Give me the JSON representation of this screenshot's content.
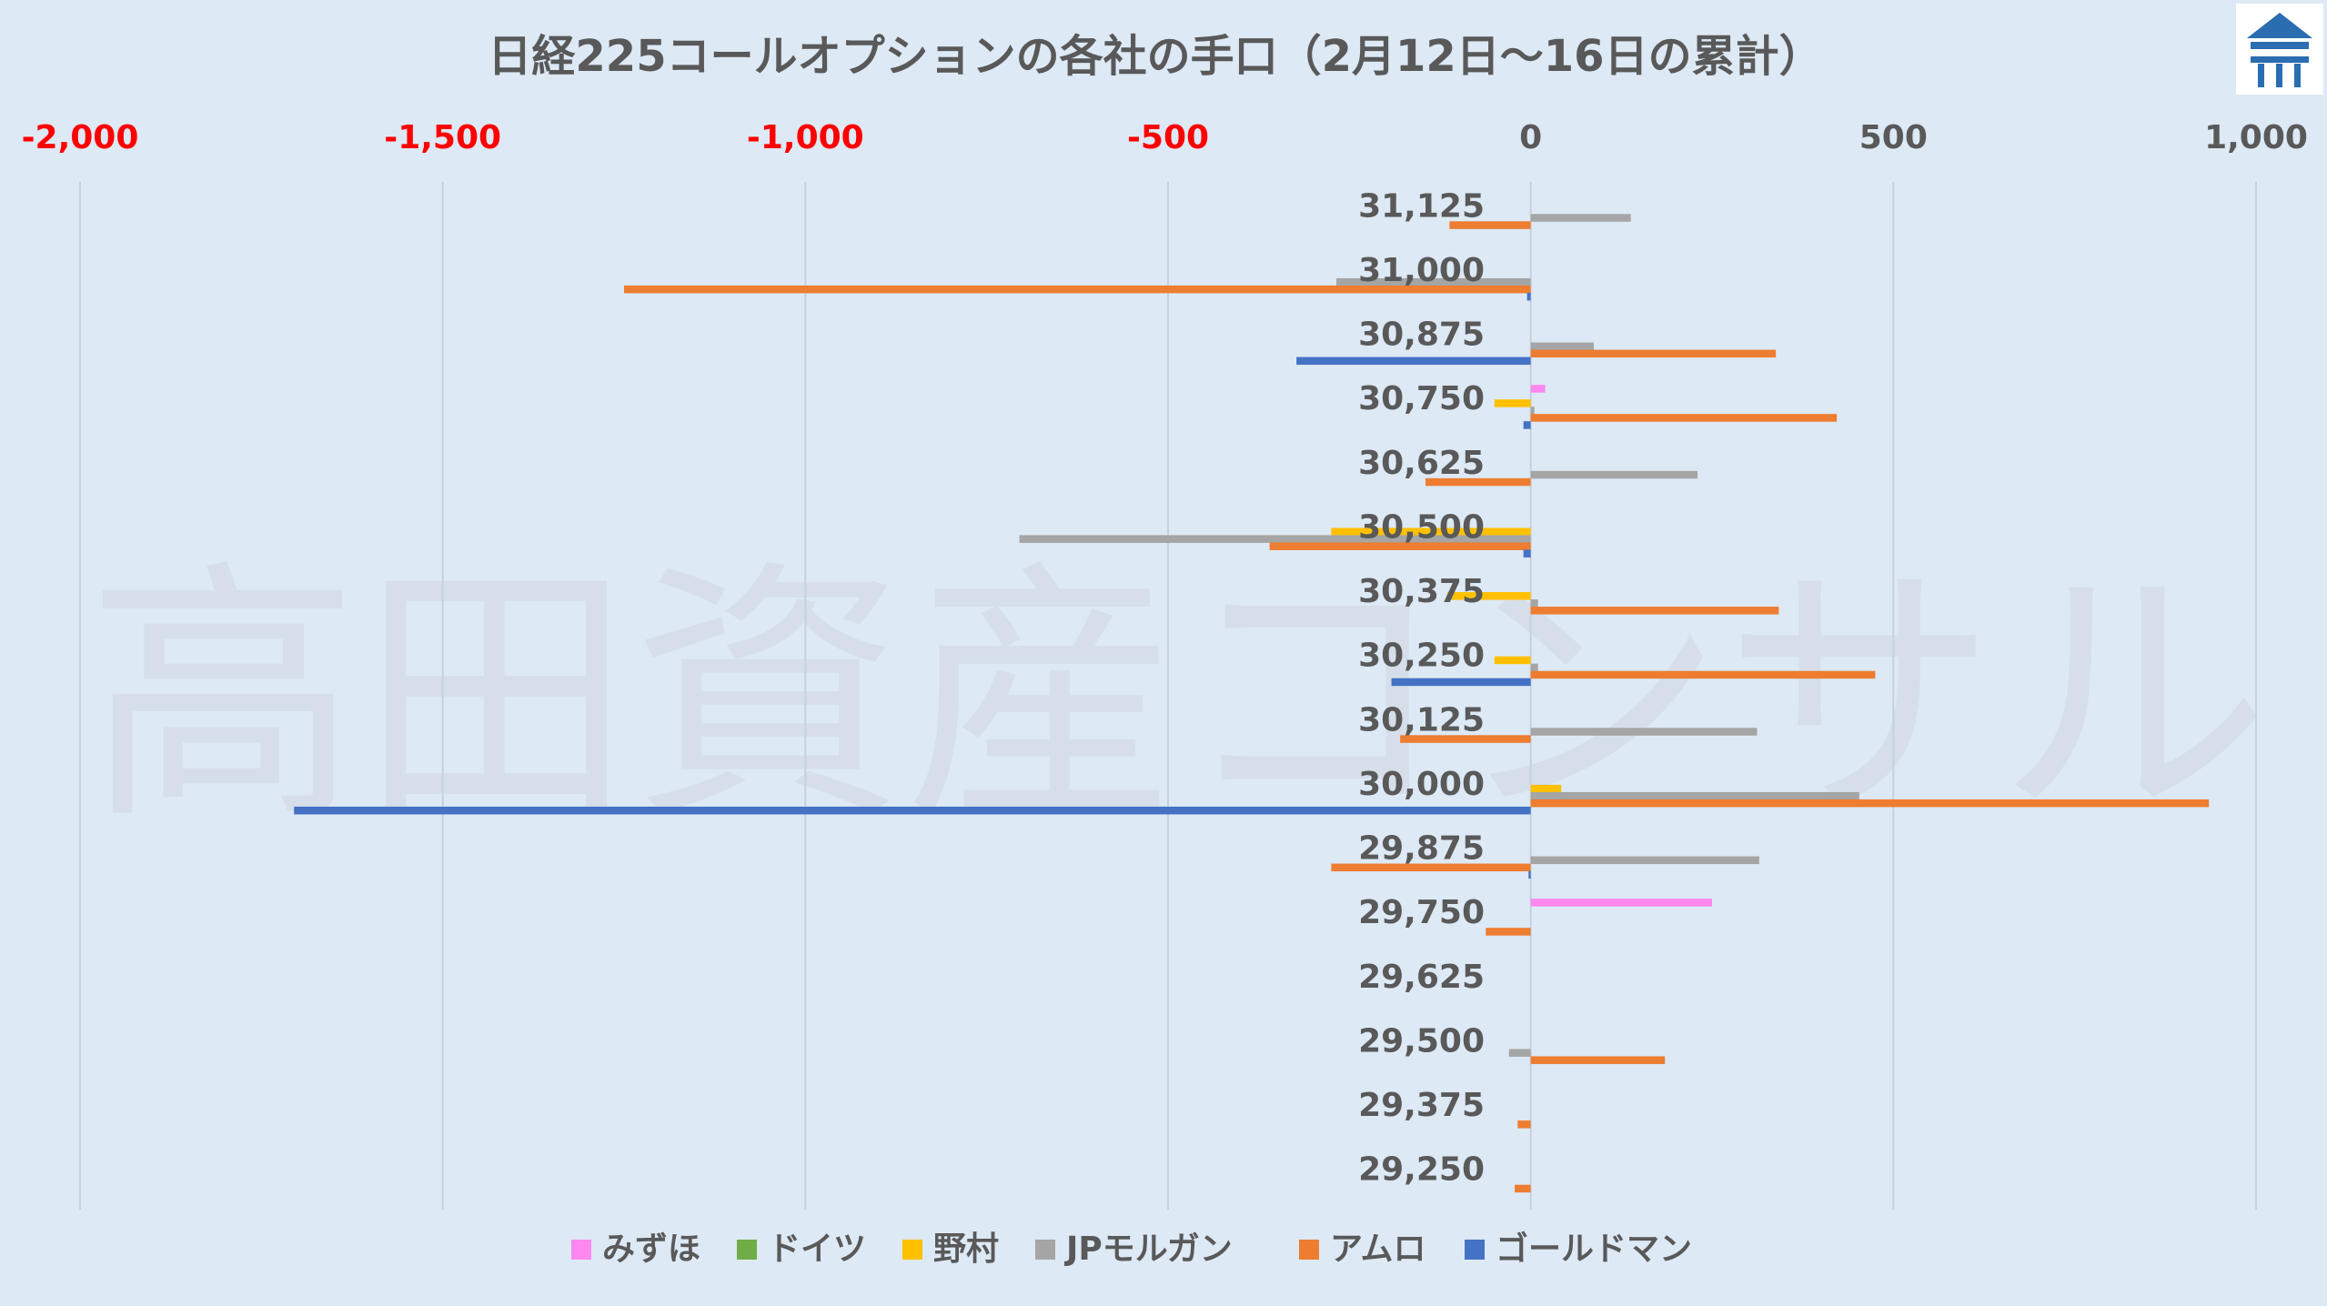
{
  "watermark": "高田資産コンサル",
  "chart_data": {
    "type": "bar",
    "orientation": "horizontal",
    "title": "日経225コールオプションの各社の手口（2月12日～16日の累計）",
    "xlim": [
      -2000,
      1000
    ],
    "x_ticks": [
      {
        "value": -2000,
        "label": "-2,000",
        "negative": true
      },
      {
        "value": -1500,
        "label": "-1,500",
        "negative": true
      },
      {
        "value": -1000,
        "label": "-1,000",
        "negative": true
      },
      {
        "value": -500,
        "label": "-500",
        "negative": true
      },
      {
        "value": 0,
        "label": "0",
        "negative": false
      },
      {
        "value": 500,
        "label": "500",
        "negative": false
      },
      {
        "value": 1000,
        "label": "1,000",
        "negative": false
      }
    ],
    "grid": true,
    "legend_position": "bottom",
    "categories": [
      "31,125",
      "31,000",
      "30,875",
      "30,750",
      "30,625",
      "30,500",
      "30,375",
      "30,250",
      "30,125",
      "30,000",
      "29,875",
      "29,750",
      "29,625",
      "29,500",
      "29,375",
      "29,250"
    ],
    "series": [
      {
        "name": "みずほ",
        "color": "#ff88ee",
        "values": [
          0,
          0,
          0,
          20,
          0,
          0,
          0,
          0,
          0,
          0,
          0,
          250,
          0,
          0,
          0,
          0
        ]
      },
      {
        "name": "ドイツ",
        "color": "#70ad47",
        "values": [
          0,
          0,
          0,
          0,
          0,
          0,
          0,
          0,
          0,
          0,
          0,
          0,
          0,
          0,
          0,
          0
        ]
      },
      {
        "name": "野村",
        "color": "#ffc000",
        "values": [
          0,
          0,
          0,
          -50,
          0,
          -275,
          -115,
          -50,
          0,
          42,
          0,
          0,
          0,
          0,
          0,
          0
        ]
      },
      {
        "name": "JPモルガン",
        "color": "#a5a5a5",
        "values": [
          138,
          -268,
          87,
          5,
          230,
          -705,
          10,
          10,
          312,
          453,
          315,
          0,
          0,
          -30,
          0,
          0
        ]
      },
      {
        "name": "アムロ",
        "color": "#ed7d31",
        "values": [
          -112,
          -1250,
          338,
          422,
          -145,
          -360,
          342,
          475,
          -180,
          935,
          -275,
          -62,
          0,
          185,
          -18,
          -22
        ]
      },
      {
        "name": "ゴールドマン",
        "color": "#4472c4",
        "values": [
          0,
          -5,
          -323,
          -10,
          0,
          -10,
          0,
          -192,
          0,
          -1705,
          -3,
          0,
          0,
          0,
          0,
          0
        ]
      }
    ]
  }
}
